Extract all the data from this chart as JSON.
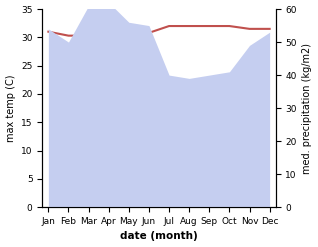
{
  "months": [
    "Jan",
    "Feb",
    "Mar",
    "Apr",
    "May",
    "Jun",
    "Jul",
    "Aug",
    "Sep",
    "Oct",
    "Nov",
    "Dec"
  ],
  "max_temp": [
    31.0,
    30.3,
    30.3,
    30.0,
    30.3,
    30.8,
    32.0,
    32.0,
    32.0,
    32.0,
    31.5,
    31.5
  ],
  "precipitation": [
    54,
    50,
    61,
    62,
    56,
    55,
    40,
    39,
    40,
    41,
    49,
    53
  ],
  "temp_color": "#c0504d",
  "precip_fill_color": "#c5cef0",
  "ylabel_left": "max temp (C)",
  "ylabel_right": "med. precipitation (kg/m2)",
  "xlabel": "date (month)",
  "ylim_left": [
    0,
    35
  ],
  "ylim_right": [
    0,
    60
  ],
  "yticks_left": [
    0,
    5,
    10,
    15,
    20,
    25,
    30,
    35
  ],
  "yticks_right": [
    0,
    10,
    20,
    30,
    40,
    50,
    60
  ]
}
